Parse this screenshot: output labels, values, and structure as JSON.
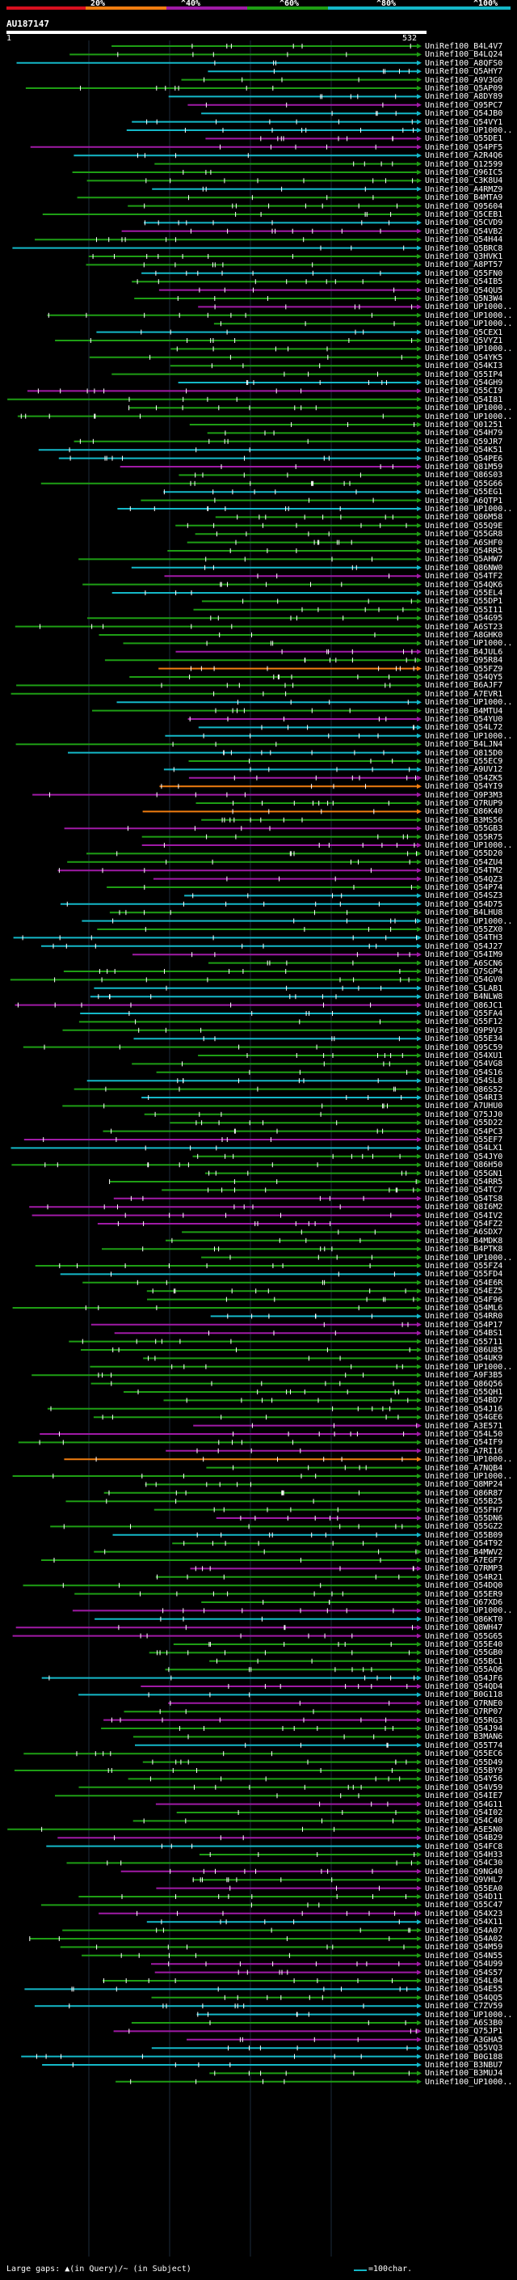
{
  "legend": {
    "labels": [
      "20%",
      "^40%",
      "^60%",
      "^80%",
      "^100%"
    ],
    "colors": [
      "#d80f1e",
      "#f07d10",
      "#a01aa6",
      "#1e9e14",
      "#14b8c8"
    ]
  },
  "query": {
    "id": "AU187147",
    "start": "1",
    "end": "532"
  },
  "hits": [
    "UniRef100_B4L4V7",
    "UniRef100_B4LQ24",
    "UniRef100_A8QFS0",
    "UniRef100_Q5AHY7",
    "UniRef100_A9V3G0",
    "UniRef100_Q5AP09",
    "UniRef100_A8DY89",
    "UniRef100_Q95PC7",
    "UniRef100_Q54JB0",
    "UniRef100_Q54VY1",
    "UniRef100_UP1000..",
    "UniRef100_Q55DE1",
    "UniRef100_Q54PF5",
    "UniRef100_A2R4Q6",
    "UniRef100_Q12599",
    "UniRef100_Q96IC5",
    "UniRef100_C3K8U4",
    "UniRef100_A4RMZ9",
    "UniRef100_B4MTA9",
    "UniRef100_Q95604",
    "UniRef100_Q5CEB1",
    "UniRef100_Q5CVD9",
    "UniRef100_Q54VB2",
    "UniRef100_Q54H44",
    "UniRef100_Q5BRC8",
    "UniRef100_Q3HVK1",
    "UniRef100_A8PT57",
    "UniRef100_Q55FN0",
    "UniRef100_Q54IB5",
    "UniRef100_Q54QU5",
    "UniRef100_Q5N3W4",
    "UniRef100_UP1000..",
    "UniRef100_UP1000..",
    "UniRef100_UP1000..",
    "UniRef100_Q5CEX1",
    "UniRef100_Q5VYZ1",
    "UniRef100_UP1000..",
    "UniRef100_Q54YK5",
    "UniRef100_Q54KI3",
    "UniRef100_Q55IP4",
    "UniRef100_Q54GH9",
    "UniRef100_Q55CI9",
    "UniRef100_Q54I81",
    "UniRef100_UP1000..",
    "UniRef100_UP1000..",
    "UniRef100_Q01251",
    "UniRef100_Q54H79",
    "UniRef100_Q59JR7",
    "UniRef100_Q54K51",
    "UniRef100_Q54PE6",
    "UniRef100_Q81M59",
    "UniRef100_Q86S03",
    "UniRef100_Q55G66",
    "UniRef100_Q55EG1",
    "UniRef100_A6QTP1",
    "UniRef100_UP1000..",
    "UniRef100_Q86M58",
    "UniRef100_Q55Q9E",
    "UniRef100_Q55GR8",
    "UniRef100_A6SHF0",
    "UniRef100_Q54RR5",
    "UniRef100_Q5AHW7",
    "UniRef100_Q86NW0",
    "UniRef100_Q54TF2",
    "UniRef100_Q54QK6",
    "UniRef100_Q55EL4",
    "UniRef100_Q55DP1",
    "UniRef100_Q55I11",
    "UniRef100_Q54G95",
    "UniRef100_A6ST23",
    "UniRef100_A8GHK0",
    "UniRef100_UP1000..",
    "UniRef100_B4JUL6",
    "UniRef100_Q95R84",
    "UniRef100_Q55FZ9",
    "UniRef100_Q54QY5",
    "UniRef100_B6AJF7",
    "UniRef100_A7EVR1",
    "UniRef100_UP1000..",
    "UniRef100_B4MTU4",
    "UniRef100_Q54YU0",
    "UniRef100_Q54L72",
    "UniRef100_UP1000..",
    "UniRef100_B4LJN4",
    "UniRef100_Q815D0",
    "UniRef100_Q55EC9",
    "UniRef100_A9UV12",
    "UniRef100_Q54ZK5",
    "UniRef100_Q54YI9",
    "UniRef100_Q9P3M3",
    "UniRef100_Q7RUP9",
    "UniRef100_Q86K40",
    "UniRef100_B3MS56",
    "UniRef100_Q55GB3",
    "UniRef100_Q55R75",
    "UniRef100_UP1000..",
    "UniRef100_Q55D20",
    "UniRef100_Q54ZU4",
    "UniRef100_Q54TM2",
    "UniRef100_Q54QZ3",
    "UniRef100_Q54P74",
    "UniRef100_Q54SZ3",
    "UniRef100_Q54D75",
    "UniRef100_B4LHU8",
    "UniRef100_UP1000..",
    "UniRef100_Q55ZX0",
    "UniRef100_Q54TH3",
    "UniRef100_Q54J27",
    "UniRef100_Q54IM9",
    "UniRef100_A6SCN6",
    "UniRef100_Q7SGP4",
    "UniRef100_Q54GV0",
    "UniRef100_C5LAB1",
    "UniRef100_B4NLW8",
    "UniRef100_Q86JC1",
    "UniRef100_Q55FA4",
    "UniRef100_Q55F12",
    "UniRef100_Q9P9V3",
    "UniRef100_Q55E34",
    "UniRef100_Q95C59",
    "UniRef100_Q54XU1",
    "UniRef100_Q54VG8",
    "UniRef100_Q54S16",
    "UniRef100_Q54SL8",
    "UniRef100_Q86S52",
    "UniRef100_Q54RI3",
    "UniRef100_A7UHU0",
    "UniRef100_Q75JJ0",
    "UniRef100_Q55D22",
    "UniRef100_Q54PC3",
    "UniRef100_Q55EF7",
    "UniRef100_Q54LX1",
    "UniRef100_Q54JY0",
    "UniRef100_Q86H50",
    "UniRef100_Q55GN1",
    "UniRef100_Q54RR5",
    "UniRef100_Q54TC7",
    "UniRef100_Q54TS8",
    "UniRef100_Q8I6M2",
    "UniRef100_Q54IV2",
    "UniRef100_Q54FZ2",
    "UniRef100_A6SDX7",
    "UniRef100_B4MDK8",
    "UniRef100_B4PTK8",
    "UniRef100_UP1000..",
    "UniRef100_Q55FZ4",
    "UniRef100_Q55FD4",
    "UniRef100_Q54E6R",
    "UniRef100_Q54EZ5",
    "UniRef100_Q54F96",
    "UniRef100_Q54ML6",
    "UniRef100_Q54RR0",
    "UniRef100_Q54P17",
    "UniRef100_Q54BS1",
    "UniRef100_Q55711",
    "UniRef100_Q86U85",
    "UniRef100_Q54UK9",
    "UniRef100_UP1000..",
    "UniRef100_A9F3B5",
    "UniRef100_Q86Q56",
    "UniRef100_Q55QH1",
    "UniRef100_Q54BD7",
    "UniRef100_Q54J16",
    "UniRef100_Q54GE6",
    "UniRef100_A3E571",
    "UniRef100_Q54L50",
    "UniRef100_Q54IF9",
    "UniRef100_A7RI16",
    "UniRef100_UP1000..",
    "UniRef100_A7NQB4",
    "UniRef100_UP1000..",
    "UniRef100_Q8MP24",
    "UniRef100_Q86R87",
    "UniRef100_Q55B25",
    "UniRef100_Q55FH7",
    "UniRef100_Q55DN6",
    "UniRef100_Q55GZ2",
    "UniRef100_Q55B09",
    "UniRef100_Q54T92",
    "UniRef100_B4MWV2",
    "UniRef100_A7EGF7",
    "UniRef100_Q7RMP3",
    "UniRef100_Q54R21",
    "UniRef100_Q54DQ0",
    "UniRef100_Q55ER9",
    "UniRef100_Q67XD6",
    "UniRef100_UP1000..",
    "UniRef100_Q86KT0",
    "UniRef100_Q8WH47",
    "UniRef100_Q55G65",
    "UniRef100_Q55E40",
    "UniRef100_Q55GB0",
    "UniRef100_Q55BC1",
    "UniRef100_Q55AQ6",
    "UniRef100_Q54JF6",
    "UniRef100_Q54QD4",
    "UniRef100_B0G118",
    "UniRef100_Q7RNE0",
    "UniRef100_Q7RP07",
    "UniRef100_Q55RG3",
    "UniRef100_Q54J94",
    "UniRef100_B3MAN6",
    "UniRef100_Q55T74",
    "UniRef100_Q55EC6",
    "UniRef100_Q55D49",
    "UniRef100_Q55BY9",
    "UniRef100_Q54Y56",
    "UniRef100_Q54V59",
    "UniRef100_Q54IE7",
    "UniRef100_Q54G11",
    "UniRef100_Q54I02",
    "UniRef100_Q54C40",
    "UniRef100_A5E5N0",
    "UniRef100_Q54B29",
    "UniRef100_Q54FC8",
    "UniRef100_Q54H33",
    "UniRef100_Q54C30",
    "UniRef100_Q9NG40",
    "UniRef100_Q9VHL7",
    "UniRef100_Q55EA0",
    "UniRef100_Q54D11",
    "UniRef100_Q55C47",
    "UniRef100_Q54X23",
    "UniRef100_Q54X11",
    "UniRef100_Q54A07",
    "UniRef100_Q54A02",
    "UniRef100_Q54M59",
    "UniRef100_Q54N55",
    "UniRef100_Q54U99",
    "UniRef100_Q54S57",
    "UniRef100_Q54L04",
    "UniRef100_Q54E55",
    "UniRef100_Q54QQ5",
    "UniRef100_C7ZV59",
    "UniRef100_UP1000..",
    "UniRef100_A6S3B0",
    "UniRef100_Q75JP1",
    "UniRef100_A3GHA5",
    "UniRef100_Q55VQ3",
    "UniRef100_B0G188",
    "UniRef100_B3NBU7",
    "UniRef100_B3MUJ4",
    "UniRef100_UP1000.."
  ],
  "footer": {
    "left": "Large gaps: ▲(in Query)/~ (in Subject)",
    "right": "=100char."
  }
}
